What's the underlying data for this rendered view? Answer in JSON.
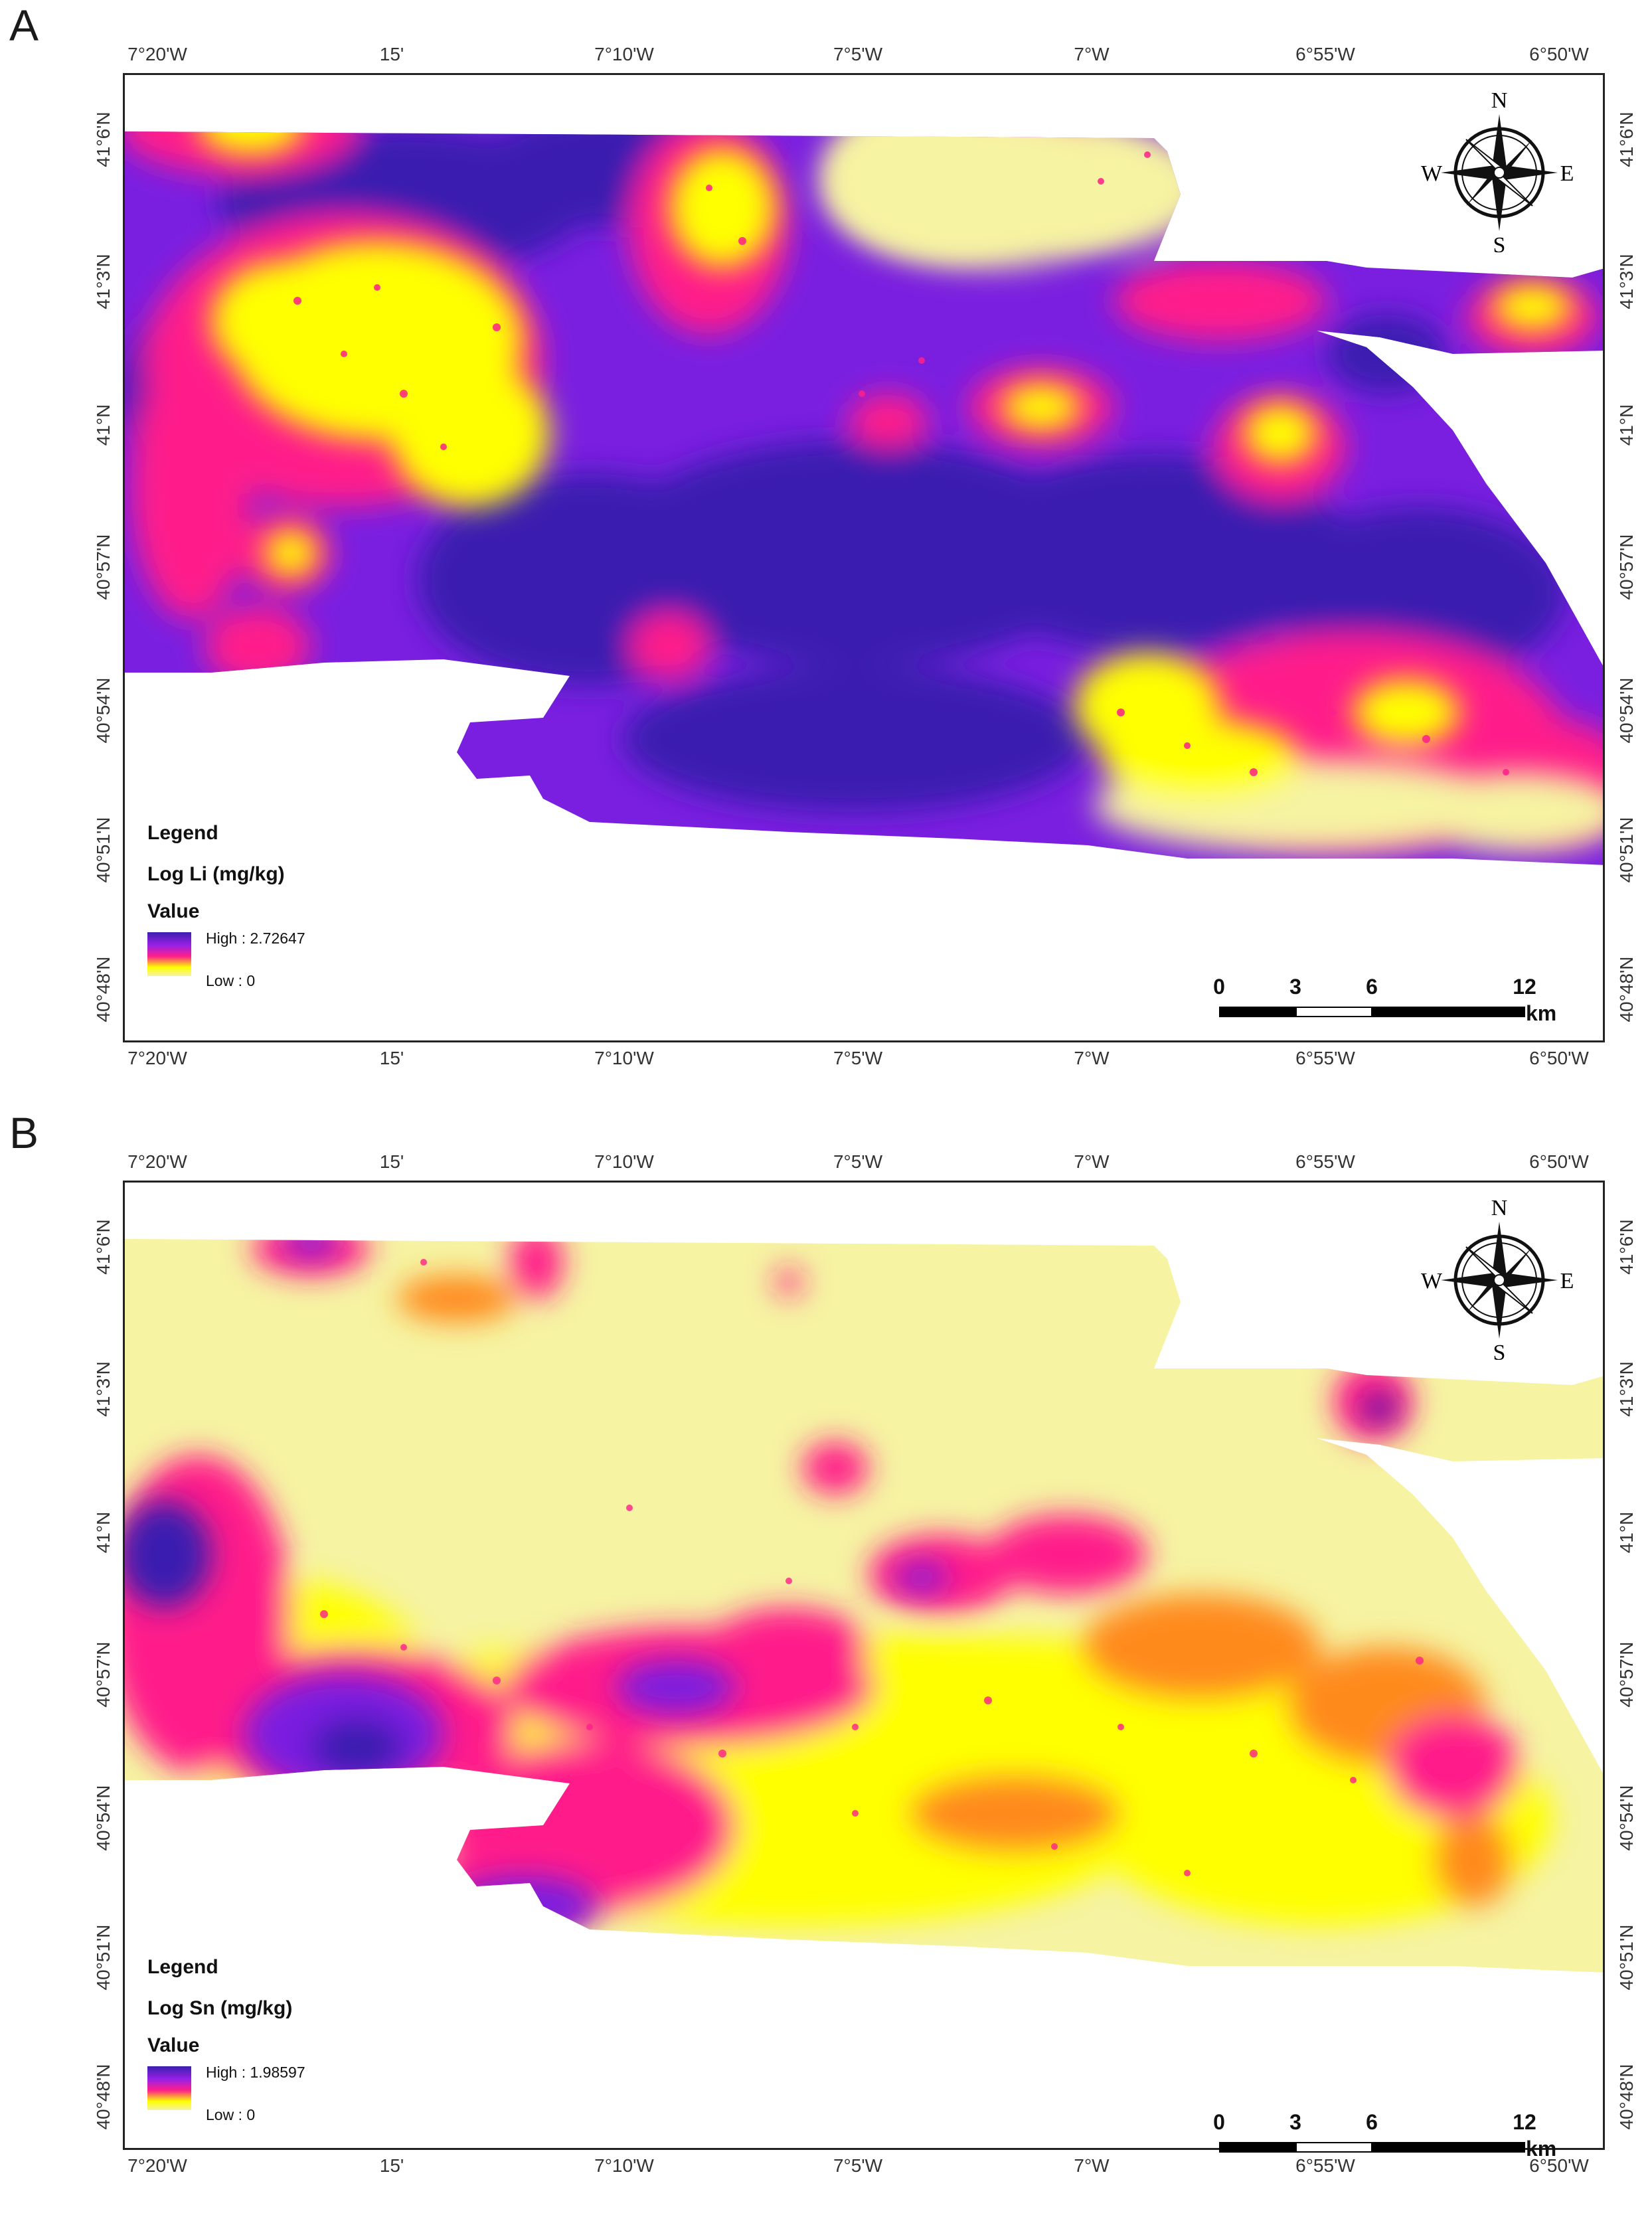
{
  "panels": [
    {
      "label": "A",
      "legend": {
        "title": "Legend",
        "variable": "Log Li (mg/kg)",
        "value_label": "Value",
        "high": "High : 2.72647",
        "low": "Low : 0"
      }
    },
    {
      "label": "B",
      "legend": {
        "title": "Legend",
        "variable": "Log Sn (mg/kg)",
        "value_label": "Value",
        "high": "High : 1.98597",
        "low": "Low : 0"
      }
    }
  ],
  "axes": {
    "longitude_ticks": [
      "7°20'W",
      "15'",
      "7°10'W",
      "7°5'W",
      "7°W",
      "6°55'W",
      "6°50'W"
    ],
    "latitude_ticks": [
      "41°6'N",
      "41°3'N",
      "41°N",
      "40°57'N",
      "40°54'N",
      "40°51'N",
      "40°48'N"
    ]
  },
  "scale_bar": {
    "ticks": [
      "0",
      "3",
      "6",
      "12"
    ],
    "unit": "km"
  },
  "north_arrow": {
    "n": "N",
    "s": "S",
    "e": "E",
    "w": "W",
    "icon": "compass-rose-icon"
  },
  "colors": {
    "high": "#3a1fb0",
    "mid_high": "#9a20e6",
    "mid": "#ff1f8a",
    "mid_low": "#ff8a1a",
    "low_mid": "#ffff00",
    "low": "#f6f3a2"
  }
}
